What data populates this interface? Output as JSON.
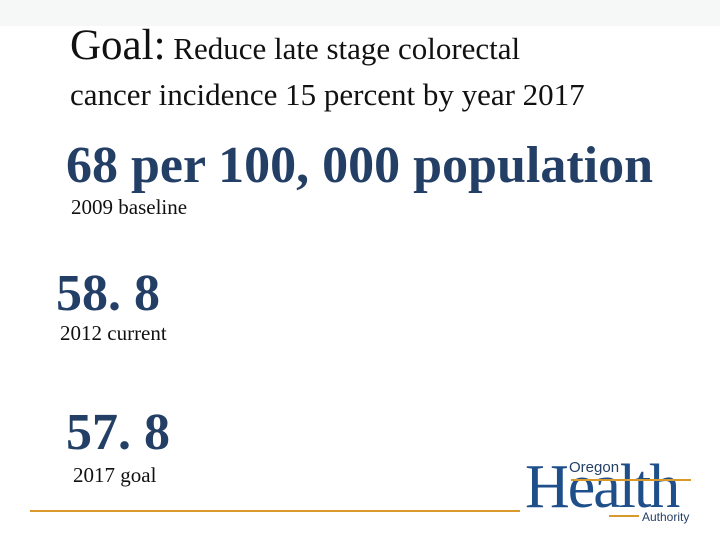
{
  "goal": {
    "label": "Goal:",
    "line1_text": "Reduce late stage colorectal",
    "line2_text": "cancer incidence 15 percent by year 2017"
  },
  "stats": {
    "baseline": {
      "value": "68 per 100, 000 population",
      "caption": "2009 baseline"
    },
    "current": {
      "value": "58. 8",
      "caption": "2012 current"
    },
    "goal": {
      "value": "57. 8",
      "caption": "2017 goal"
    }
  },
  "logo": {
    "top": "Oregon",
    "main": "Health",
    "bottom": "Authority"
  },
  "colors": {
    "stat_text": "#243f66",
    "accent_rule": "#d99a2b",
    "logo_blue": "#1f4f8a"
  }
}
